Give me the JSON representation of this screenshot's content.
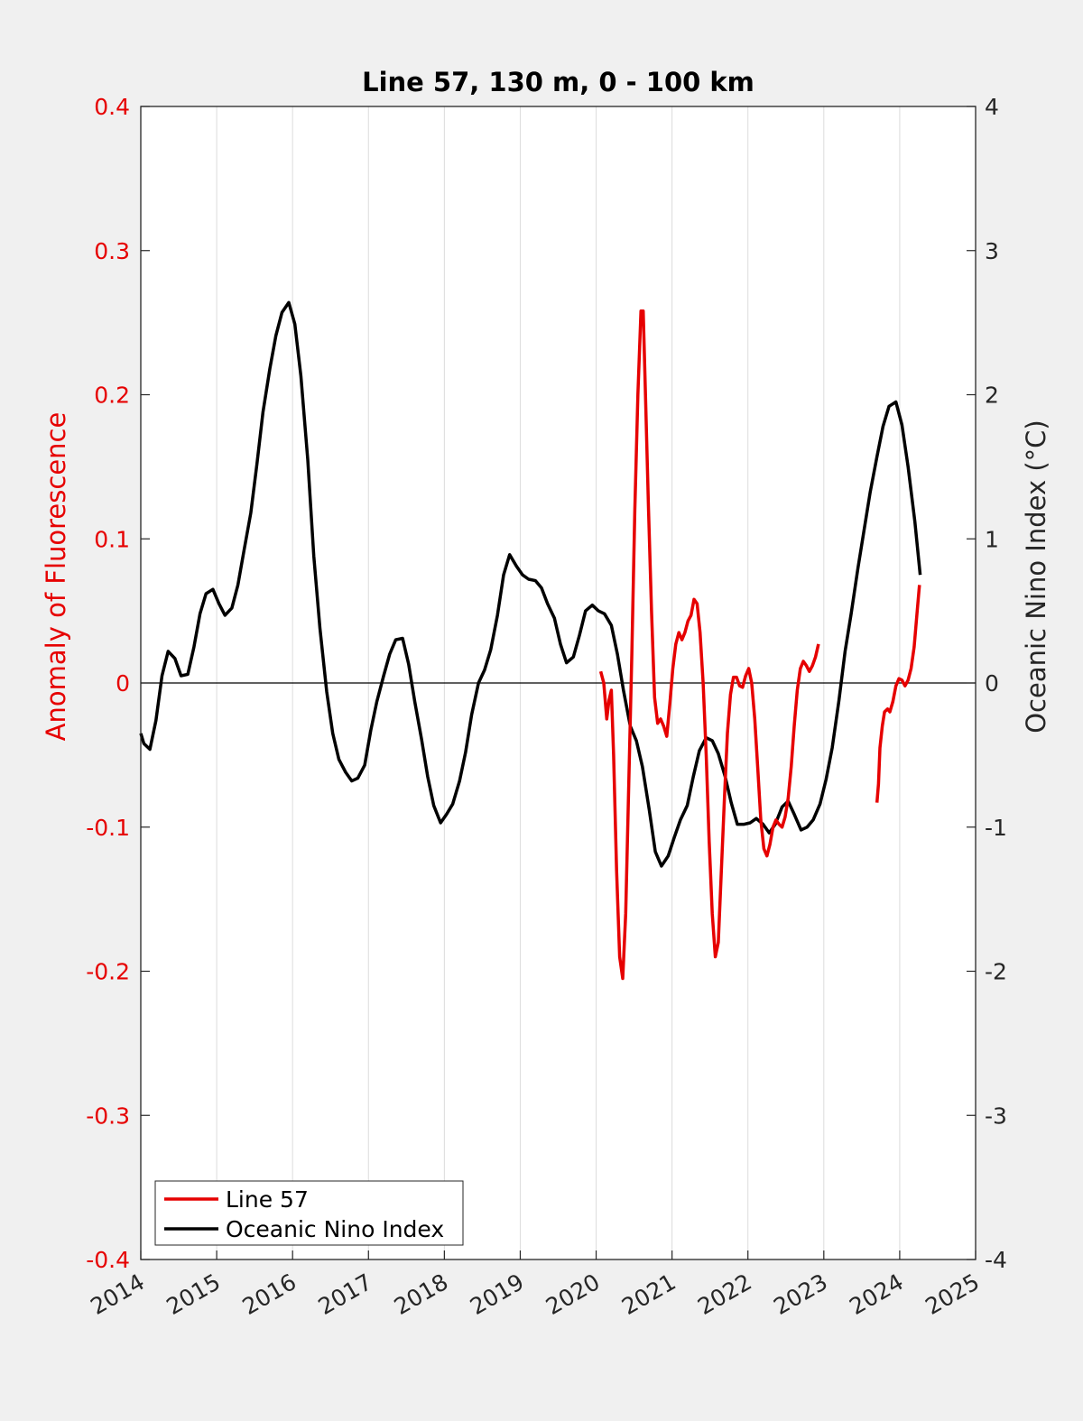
{
  "chart_data": {
    "type": "line",
    "title": "Line 57, 130 m, 0 - 100 km",
    "xlabel": "",
    "ylabel_left": "Anomaly of Fluorescence",
    "ylabel_right": "Oceanic Nino Index (°C)",
    "xlim": [
      2014,
      2025
    ],
    "ylim_left": [
      -0.4,
      0.4
    ],
    "ylim_right": [
      -4,
      4
    ],
    "x_ticks": [
      "2014",
      "2015",
      "2016",
      "2017",
      "2018",
      "2019",
      "2020",
      "2021",
      "2022",
      "2023",
      "2024",
      "2025"
    ],
    "y_ticks_left": [
      "-0.4",
      "-0.3",
      "-0.2",
      "-0.1",
      "0",
      "0.1",
      "0.2",
      "0.3",
      "0.4"
    ],
    "y_ticks_right": [
      "-4",
      "-3",
      "-2",
      "-1",
      "0",
      "1",
      "2",
      "3",
      "4"
    ],
    "grid": "vertical",
    "legend_location": "bottom-left",
    "colors": {
      "line57": "#e60000",
      "oni": "#000000",
      "left_axis": "#e60000",
      "right_axis": "#262626"
    },
    "series": [
      {
        "name": "Line 57",
        "axis": "left",
        "color": "#e60000",
        "segments": [
          [
            [
              2020.06,
              0.008
            ],
            [
              2020.1,
              0.0
            ],
            [
              2020.14,
              -0.025
            ],
            [
              2020.17,
              -0.012
            ],
            [
              2020.2,
              -0.005
            ],
            [
              2020.23,
              -0.05
            ],
            [
              2020.27,
              -0.13
            ],
            [
              2020.31,
              -0.19
            ],
            [
              2020.35,
              -0.205
            ],
            [
              2020.39,
              -0.16
            ],
            [
              2020.43,
              -0.07
            ],
            [
              2020.47,
              0.02
            ],
            [
              2020.51,
              0.12
            ],
            [
              2020.55,
              0.2
            ],
            [
              2020.59,
              0.258
            ],
            [
              2020.62,
              0.258
            ],
            [
              2020.65,
              0.2
            ],
            [
              2020.69,
              0.12
            ],
            [
              2020.73,
              0.05
            ],
            [
              2020.77,
              -0.01
            ],
            [
              2020.81,
              -0.028
            ],
            [
              2020.85,
              -0.025
            ],
            [
              2020.89,
              -0.03
            ],
            [
              2020.93,
              -0.037
            ],
            [
              2020.97,
              -0.015
            ],
            [
              2021.01,
              0.01
            ],
            [
              2021.05,
              0.027
            ],
            [
              2021.09,
              0.035
            ],
            [
              2021.13,
              0.03
            ],
            [
              2021.17,
              0.035
            ],
            [
              2021.21,
              0.043
            ],
            [
              2021.25,
              0.047
            ],
            [
              2021.29,
              0.058
            ],
            [
              2021.33,
              0.055
            ],
            [
              2021.37,
              0.035
            ],
            [
              2021.41,
              0.0
            ],
            [
              2021.45,
              -0.05
            ],
            [
              2021.49,
              -0.11
            ],
            [
              2021.53,
              -0.16
            ],
            [
              2021.57,
              -0.19
            ],
            [
              2021.61,
              -0.18
            ],
            [
              2021.65,
              -0.13
            ],
            [
              2021.69,
              -0.08
            ],
            [
              2021.73,
              -0.035
            ],
            [
              2021.77,
              -0.008
            ],
            [
              2021.81,
              0.004
            ],
            [
              2021.85,
              0.004
            ],
            [
              2021.89,
              -0.002
            ],
            [
              2021.93,
              -0.003
            ],
            [
              2021.97,
              0.005
            ],
            [
              2022.01,
              0.01
            ],
            [
              2022.05,
              0.0
            ],
            [
              2022.09,
              -0.025
            ],
            [
              2022.13,
              -0.06
            ],
            [
              2022.17,
              -0.095
            ],
            [
              2022.21,
              -0.115
            ],
            [
              2022.25,
              -0.12
            ],
            [
              2022.29,
              -0.112
            ],
            [
              2022.33,
              -0.1
            ],
            [
              2022.37,
              -0.095
            ],
            [
              2022.41,
              -0.098
            ],
            [
              2022.45,
              -0.1
            ],
            [
              2022.49,
              -0.093
            ],
            [
              2022.53,
              -0.08
            ],
            [
              2022.57,
              -0.058
            ],
            [
              2022.61,
              -0.03
            ],
            [
              2022.65,
              -0.005
            ],
            [
              2022.69,
              0.01
            ],
            [
              2022.73,
              0.015
            ],
            [
              2022.77,
              0.012
            ],
            [
              2022.81,
              0.008
            ],
            [
              2022.85,
              0.012
            ],
            [
              2022.89,
              0.018
            ],
            [
              2022.93,
              0.027
            ]
          ],
          [
            [
              2023.7,
              -0.083
            ],
            [
              2023.72,
              -0.07
            ],
            [
              2023.74,
              -0.045
            ],
            [
              2023.77,
              -0.03
            ],
            [
              2023.8,
              -0.02
            ],
            [
              2023.84,
              -0.018
            ],
            [
              2023.87,
              -0.02
            ],
            [
              2023.91,
              -0.013
            ],
            [
              2023.95,
              -0.002
            ],
            [
              2023.99,
              0.003
            ],
            [
              2024.03,
              0.002
            ],
            [
              2024.07,
              -0.002
            ],
            [
              2024.11,
              0.002
            ],
            [
              2024.15,
              0.01
            ],
            [
              2024.19,
              0.025
            ],
            [
              2024.23,
              0.05
            ],
            [
              2024.26,
              0.068
            ]
          ]
        ]
      },
      {
        "name": "Oceanic Nino Index",
        "axis": "right",
        "color": "#000000",
        "segments": [
          [
            [
              2014.0,
              -0.35
            ],
            [
              2014.04,
              -0.42
            ],
            [
              2014.12,
              -0.46
            ],
            [
              2014.2,
              -0.26
            ],
            [
              2014.28,
              0.05
            ],
            [
              2014.36,
              0.22
            ],
            [
              2014.45,
              0.17
            ],
            [
              2014.53,
              0.05
            ],
            [
              2014.62,
              0.06
            ],
            [
              2014.7,
              0.25
            ],
            [
              2014.78,
              0.48
            ],
            [
              2014.86,
              0.62
            ],
            [
              2014.95,
              0.65
            ],
            [
              2015.03,
              0.55
            ],
            [
              2015.11,
              0.47
            ],
            [
              2015.2,
              0.52
            ],
            [
              2015.28,
              0.68
            ],
            [
              2015.36,
              0.92
            ],
            [
              2015.45,
              1.18
            ],
            [
              2015.53,
              1.52
            ],
            [
              2015.61,
              1.88
            ],
            [
              2015.7,
              2.18
            ],
            [
              2015.78,
              2.41
            ],
            [
              2015.86,
              2.57
            ],
            [
              2015.95,
              2.64
            ],
            [
              2016.03,
              2.49
            ],
            [
              2016.11,
              2.13
            ],
            [
              2016.2,
              1.55
            ],
            [
              2016.28,
              0.88
            ],
            [
              2016.36,
              0.38
            ],
            [
              2016.45,
              -0.06
            ],
            [
              2016.53,
              -0.35
            ],
            [
              2016.61,
              -0.53
            ],
            [
              2016.7,
              -0.62
            ],
            [
              2016.78,
              -0.68
            ],
            [
              2016.86,
              -0.66
            ],
            [
              2016.95,
              -0.57
            ],
            [
              2017.03,
              -0.33
            ],
            [
              2017.11,
              -0.13
            ],
            [
              2017.2,
              0.05
            ],
            [
              2017.28,
              0.2
            ],
            [
              2017.36,
              0.3
            ],
            [
              2017.45,
              0.31
            ],
            [
              2017.53,
              0.13
            ],
            [
              2017.61,
              -0.13
            ],
            [
              2017.7,
              -0.39
            ],
            [
              2017.78,
              -0.65
            ],
            [
              2017.86,
              -0.85
            ],
            [
              2017.95,
              -0.97
            ],
            [
              2018.03,
              -0.91
            ],
            [
              2018.11,
              -0.84
            ],
            [
              2018.2,
              -0.68
            ],
            [
              2018.28,
              -0.48
            ],
            [
              2018.36,
              -0.22
            ],
            [
              2018.45,
              0.0
            ],
            [
              2018.53,
              0.09
            ],
            [
              2018.61,
              0.23
            ],
            [
              2018.7,
              0.47
            ],
            [
              2018.78,
              0.75
            ],
            [
              2018.86,
              0.89
            ],
            [
              2018.95,
              0.81
            ],
            [
              2019.03,
              0.75
            ],
            [
              2019.11,
              0.72
            ],
            [
              2019.2,
              0.71
            ],
            [
              2019.28,
              0.66
            ],
            [
              2019.36,
              0.55
            ],
            [
              2019.45,
              0.45
            ],
            [
              2019.53,
              0.27
            ],
            [
              2019.61,
              0.14
            ],
            [
              2019.7,
              0.18
            ],
            [
              2019.78,
              0.33
            ],
            [
              2019.86,
              0.5
            ],
            [
              2019.95,
              0.54
            ],
            [
              2020.03,
              0.5
            ],
            [
              2020.11,
              0.48
            ],
            [
              2020.2,
              0.4
            ],
            [
              2020.28,
              0.2
            ],
            [
              2020.36,
              -0.05
            ],
            [
              2020.45,
              -0.3
            ],
            [
              2020.53,
              -0.4
            ],
            [
              2020.61,
              -0.58
            ],
            [
              2020.7,
              -0.88
            ],
            [
              2020.78,
              -1.17
            ],
            [
              2020.86,
              -1.27
            ],
            [
              2020.95,
              -1.2
            ],
            [
              2021.03,
              -1.07
            ],
            [
              2021.11,
              -0.95
            ],
            [
              2021.2,
              -0.85
            ],
            [
              2021.28,
              -0.65
            ],
            [
              2021.36,
              -0.47
            ],
            [
              2021.45,
              -0.38
            ],
            [
              2021.53,
              -0.4
            ],
            [
              2021.61,
              -0.49
            ],
            [
              2021.7,
              -0.65
            ],
            [
              2021.78,
              -0.83
            ],
            [
              2021.86,
              -0.98
            ],
            [
              2021.95,
              -0.98
            ],
            [
              2022.03,
              -0.97
            ],
            [
              2022.11,
              -0.94
            ],
            [
              2022.2,
              -0.98
            ],
            [
              2022.28,
              -1.04
            ],
            [
              2022.36,
              -0.98
            ],
            [
              2022.45,
              -0.86
            ],
            [
              2022.53,
              -0.82
            ],
            [
              2022.61,
              -0.91
            ],
            [
              2022.7,
              -1.02
            ],
            [
              2022.78,
              -1.0
            ],
            [
              2022.86,
              -0.95
            ],
            [
              2022.95,
              -0.84
            ],
            [
              2023.03,
              -0.67
            ],
            [
              2023.11,
              -0.45
            ],
            [
              2023.2,
              -0.12
            ],
            [
              2023.28,
              0.22
            ],
            [
              2023.36,
              0.48
            ],
            [
              2023.45,
              0.8
            ],
            [
              2023.53,
              1.06
            ],
            [
              2023.61,
              1.32
            ],
            [
              2023.7,
              1.57
            ],
            [
              2023.78,
              1.78
            ],
            [
              2023.86,
              1.92
            ],
            [
              2023.95,
              1.95
            ],
            [
              2024.03,
              1.79
            ],
            [
              2024.11,
              1.5
            ],
            [
              2024.2,
              1.12
            ],
            [
              2024.27,
              0.75
            ]
          ]
        ]
      }
    ],
    "reference_line": {
      "axis": "left",
      "y": 0
    }
  }
}
